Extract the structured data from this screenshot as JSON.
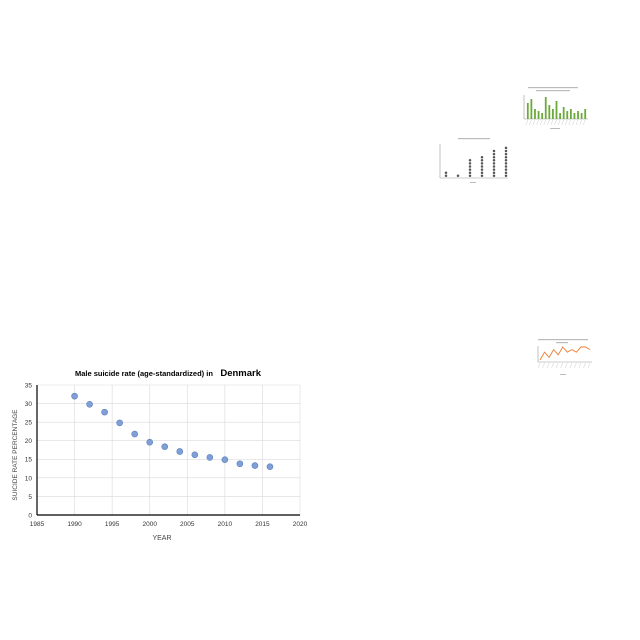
{
  "colors": {
    "background": "#ffffff",
    "point": "#7f9fd6",
    "point_stroke": "#5b7fbf",
    "grid": "#d9d9d9",
    "axis": "#000000",
    "thumb_bar": "#6aaa3a",
    "thumb_dot": "#555555",
    "thumb_line": "#ed7d31"
  },
  "chart_data": [
    {
      "type": "scatter",
      "title_prefix": "Male suicide rate (age-standardized) in",
      "title_emphasis": "Denmark",
      "xlabel": "YEAR",
      "ylabel": "SUICIDE RATE PERCENTAGE",
      "xlim": [
        1985,
        2020
      ],
      "ylim": [
        0,
        35
      ],
      "xticks": [
        1985,
        1990,
        1995,
        2000,
        2005,
        2010,
        2015,
        2020
      ],
      "yticks": [
        0,
        5,
        10,
        15,
        20,
        25,
        30,
        35
      ],
      "grid": true,
      "legend": "none",
      "x": [
        1990,
        1992,
        1994,
        1996,
        1998,
        2000,
        2002,
        2004,
        2006,
        2008,
        2010,
        2012,
        2014,
        2016
      ],
      "y": [
        32,
        29.8,
        27.7,
        24.8,
        21.8,
        19.6,
        18.4,
        17.1,
        16.2,
        15.5,
        14.9,
        13.8,
        13.3,
        13.0
      ]
    },
    {
      "type": "bar",
      "values": [
        8,
        10,
        5,
        4,
        3,
        11,
        7,
        5,
        9,
        3,
        6,
        4,
        5,
        3,
        4,
        3,
        5
      ],
      "ylim": [
        0,
        12
      ]
    },
    {
      "type": "scatter",
      "categories": [
        "c1",
        "c2",
        "c3",
        "c4",
        "c5",
        "c6"
      ],
      "values": [
        2,
        1,
        6,
        7,
        9,
        10
      ],
      "ylim": [
        0,
        12
      ]
    },
    {
      "type": "line",
      "values": [
        2,
        5,
        3,
        6,
        4,
        7,
        5,
        6,
        5,
        7,
        7,
        6
      ]
    }
  ]
}
